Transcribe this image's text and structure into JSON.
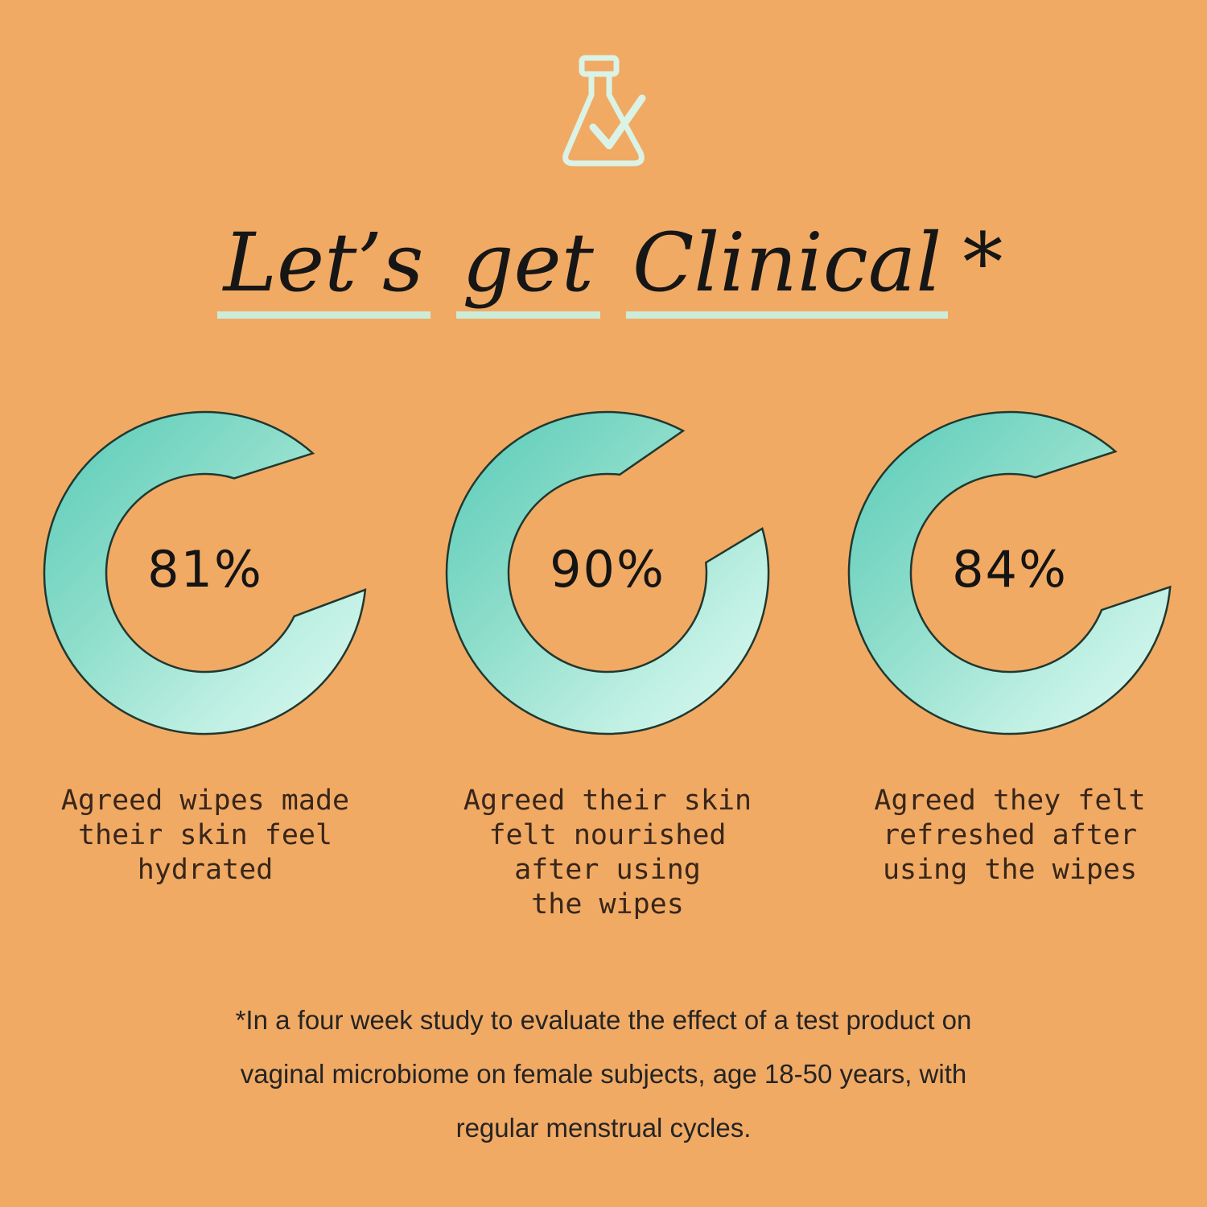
{
  "canvas": {
    "background_color": "#f1aa64"
  },
  "header": {
    "icon": {
      "name": "flask-check-icon",
      "color": "#daf3e6"
    },
    "title": {
      "full_text": "Let’s get Clinical*",
      "words": [
        "Let’s",
        "get",
        "Clinical"
      ],
      "asterisk": "*",
      "text_color": "#161616",
      "underline_color": "#cbecd9"
    }
  },
  "chart_data": {
    "type": "donut",
    "title": "Let’s get Clinical*",
    "unit": "%",
    "legend_position": "none",
    "ring_gradient": [
      "#58cbb8",
      "#8cddca",
      "#c0f0e4",
      "#dff9f1"
    ],
    "outline_color": "#203830",
    "items": [
      {
        "value": 81,
        "display": "81%",
        "caption": "Agreed wipes made\ntheir skin feel\nhydrated",
        "arc": {
          "outer_start": 48,
          "outer_end": -6,
          "inner_start": 73,
          "inner_end": -26
        }
      },
      {
        "value": 90,
        "display": "90%",
        "caption": "Agreed their skin\nfelt nourished\nafter using\nthe wipes",
        "arc": {
          "outer_start": 62,
          "outer_end": 16,
          "inner_start": 83,
          "inner_end": 6
        }
      },
      {
        "value": 84,
        "display": "84%",
        "caption": "Agreed they felt\nrefreshed after\nusing the wipes",
        "arc": {
          "outer_start": 49,
          "outer_end": -5,
          "inner_start": 75,
          "inner_end": -22
        }
      }
    ]
  },
  "footnote": {
    "text": "*In a four week study to evaluate the effect of a test product on\nvaginal microbiome on female subjects, age 18-50 years, with\nregular menstrual cycles.",
    "color": "#242424"
  }
}
